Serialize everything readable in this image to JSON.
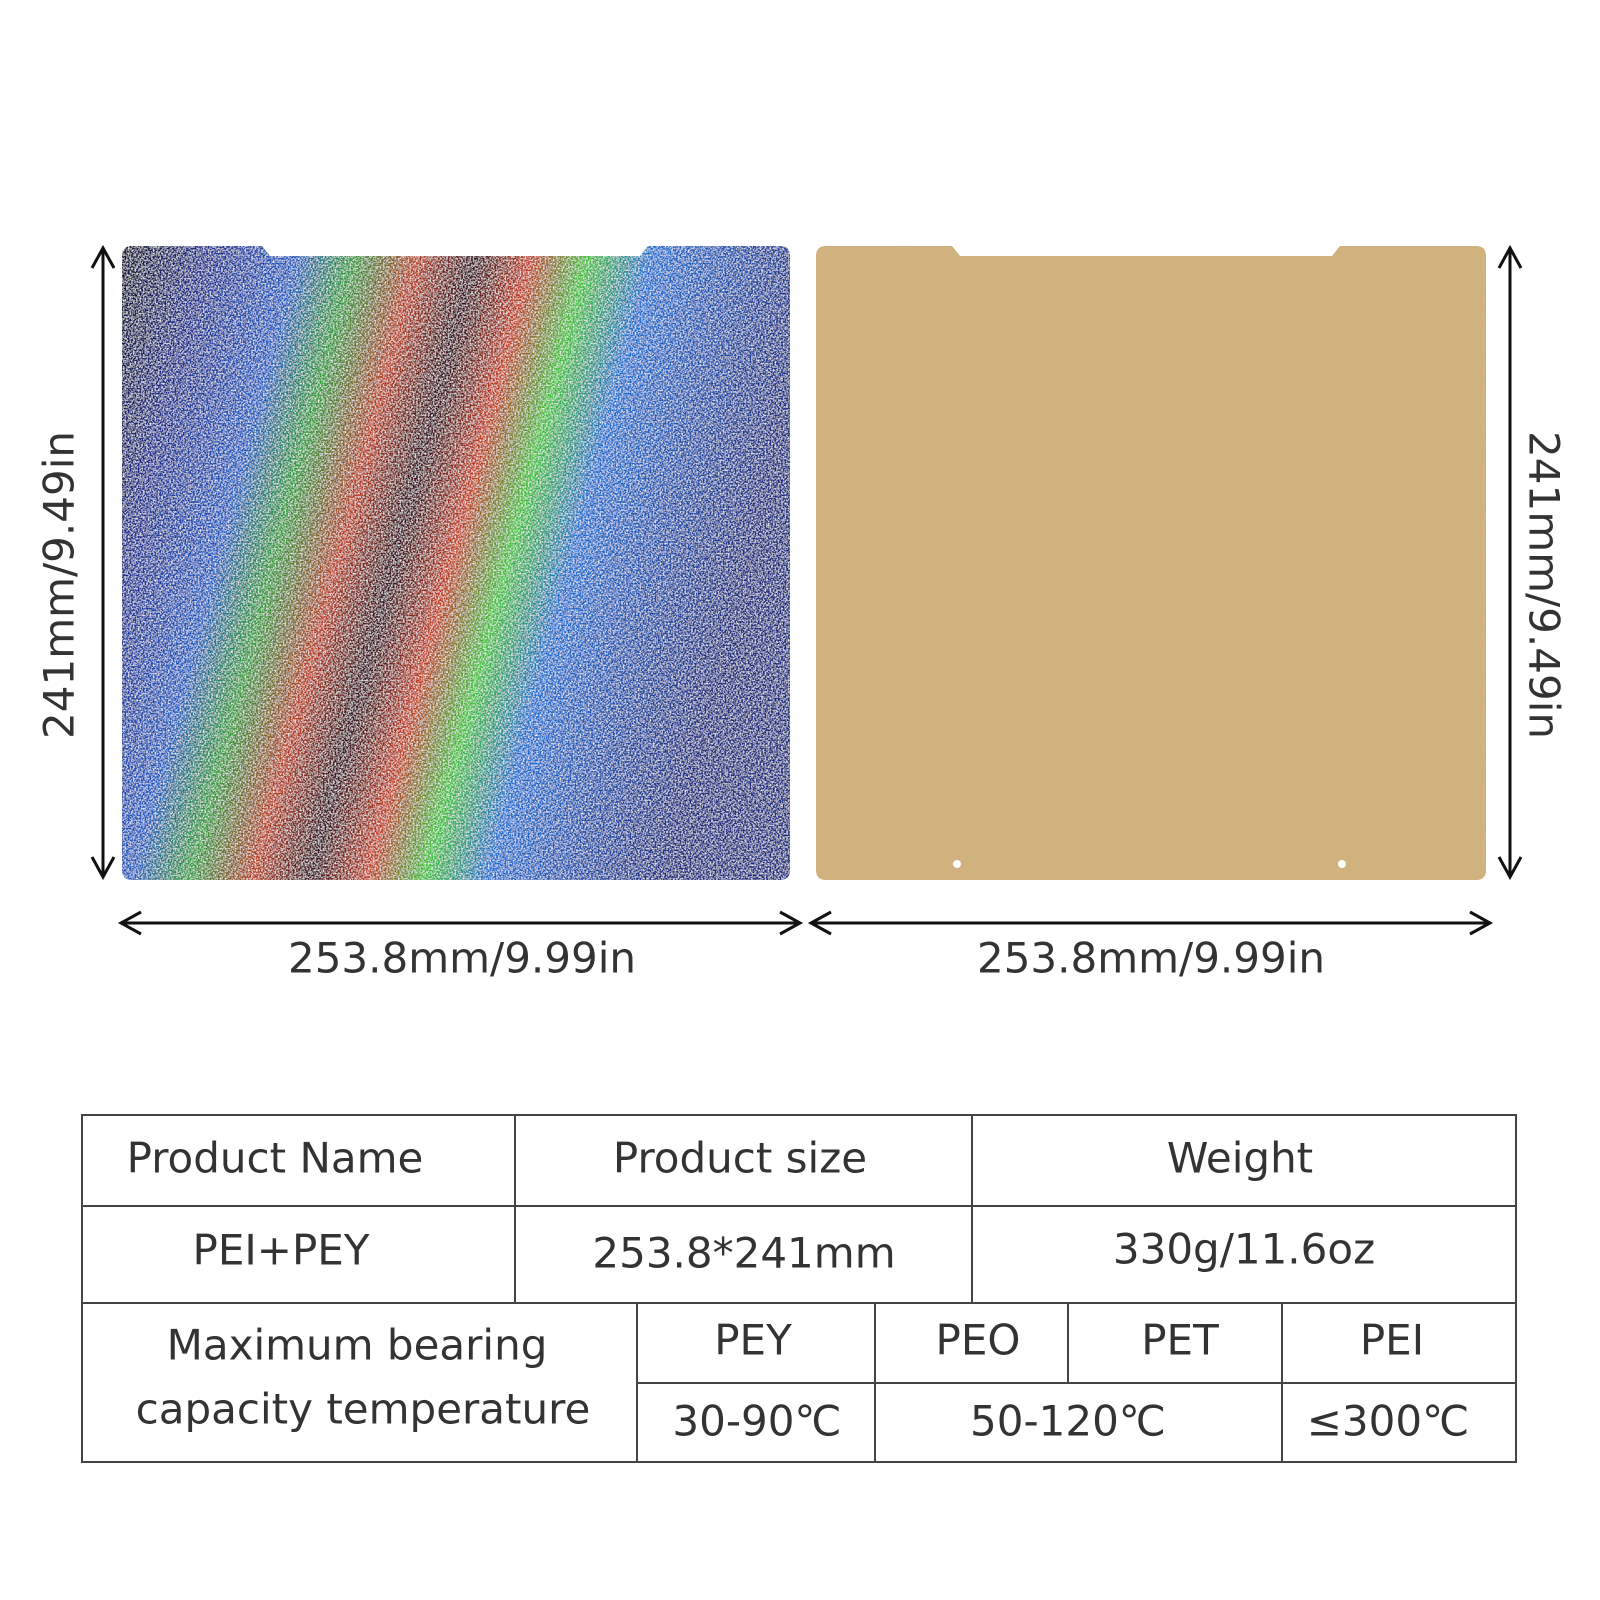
{
  "dimensions": {
    "left_height": "241mm/9.49in",
    "left_width": "253.8mm/9.99in",
    "right_height": "241mm/9.49in",
    "right_width": "253.8mm/9.99in"
  },
  "table": {
    "header": [
      "Product Name",
      "Product size",
      "Weight"
    ],
    "rows": [
      [
        "PEI+PEY",
        "253.8*241mm",
        "330g/11.6oz"
      ]
    ],
    "temperature": {
      "label": [
        "Maximum bearing",
        "capacity temperature"
      ],
      "materials": [
        "PEY",
        "PEO",
        "PET",
        "PEI"
      ],
      "ranges": [
        "30-90℃",
        "50-120℃",
        "≤300℃"
      ]
    }
  }
}
